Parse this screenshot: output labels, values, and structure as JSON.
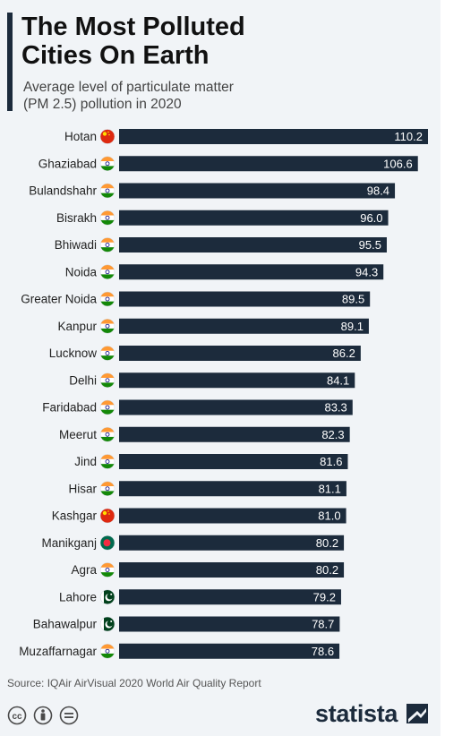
{
  "title": "The Most Polluted\nCities On Earth",
  "subtitle": "Average level of particulate matter\n(PM 2.5) pollution in 2020",
  "source": "Source: IQAir AirVisual 2020 World Air Quality Report",
  "brand": "statista",
  "colors": {
    "bar": "#1c2b3c",
    "background": "#f1f4f7",
    "accent": "#1c2b3c"
  },
  "chart_data": {
    "type": "bar",
    "orientation": "horizontal",
    "categories": [
      "Hotan",
      "Ghaziabad",
      "Bulandshahr",
      "Bisrakh",
      "Bhiwadi",
      "Noida",
      "Greater Noida",
      "Kanpur",
      "Lucknow",
      "Delhi",
      "Faridabad",
      "Meerut",
      "Jind",
      "Hisar",
      "Kashgar",
      "Manikganj",
      "Agra",
      "Lahore",
      "Bahawalpur",
      "Muzaffarnagar"
    ],
    "flags": [
      "china",
      "india",
      "india",
      "india",
      "india",
      "india",
      "india",
      "india",
      "india",
      "india",
      "india",
      "india",
      "india",
      "india",
      "china",
      "bangladesh",
      "india",
      "pakistan",
      "pakistan",
      "india"
    ],
    "values": [
      110.2,
      106.6,
      98.4,
      96.0,
      95.5,
      94.3,
      89.5,
      89.1,
      86.2,
      84.1,
      83.3,
      82.3,
      81.6,
      81.1,
      81.0,
      80.2,
      80.2,
      79.2,
      78.7,
      78.6
    ],
    "value_labels": [
      "110.2",
      "106.6",
      "98.4",
      "96.0",
      "95.5",
      "94.3",
      "89.5",
      "89.1",
      "86.2",
      "84.1",
      "83.3",
      "82.3",
      "81.6",
      "81.1",
      "81.0",
      "80.2",
      "80.2",
      "79.2",
      "78.7",
      "78.6"
    ],
    "xlim": [
      0,
      110.2
    ],
    "grid": false,
    "legend": "none"
  }
}
